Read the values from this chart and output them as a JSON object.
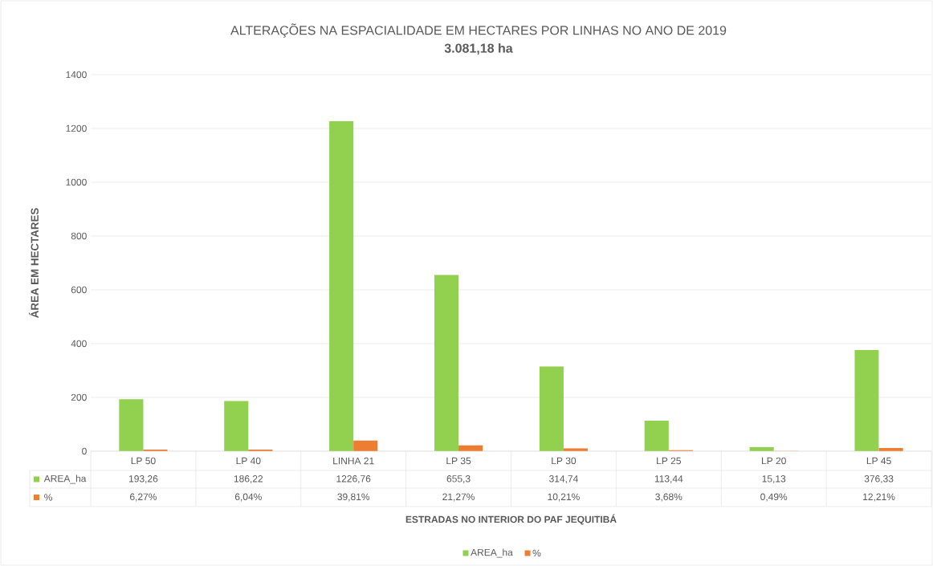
{
  "chart_data": {
    "type": "bar",
    "title": "ALTERAÇÕES NA ESPACIALIDADE EM HECTARES POR LINHAS NO ANO DE 2019",
    "subtitle": "3.081,18 ha",
    "annotations": [
      "ESTRADAS NO INTERIOR DO PAF JEQUITIBÁ"
    ],
    "ylabel": "ÁREA EM HECTARES",
    "categories": [
      "LP 50",
      "LP 40",
      "LINHA 21",
      "LP 35",
      "LP 30",
      "LP 25",
      "LP 20",
      "LP 45"
    ],
    "series": [
      {
        "name": "AREA_ha",
        "color": "#92d050",
        "values": [
          193.26,
          186.22,
          1226.76,
          655.3,
          314.74,
          113.44,
          15.13,
          376.33
        ],
        "value_labels": [
          "193,26",
          "186,22",
          "1226,76",
          "655,3",
          "314,74",
          "113,44",
          "15,13",
          "376,33"
        ]
      },
      {
        "name": "%",
        "color": "#ed7d31",
        "values": [
          6.27,
          6.04,
          39.81,
          21.27,
          10.21,
          3.68,
          0.49,
          12.21
        ],
        "value_labels": [
          "6,27%",
          "6,04%",
          "39,81%",
          "21,27%",
          "10,21%",
          "3,68%",
          "0,49%",
          "12,21%"
        ]
      }
    ],
    "ylim": [
      0,
      1400
    ],
    "yticks": [
      0,
      200,
      400,
      600,
      800,
      1000,
      1200,
      1400
    ],
    "grid": "y",
    "legend": "bottom"
  }
}
